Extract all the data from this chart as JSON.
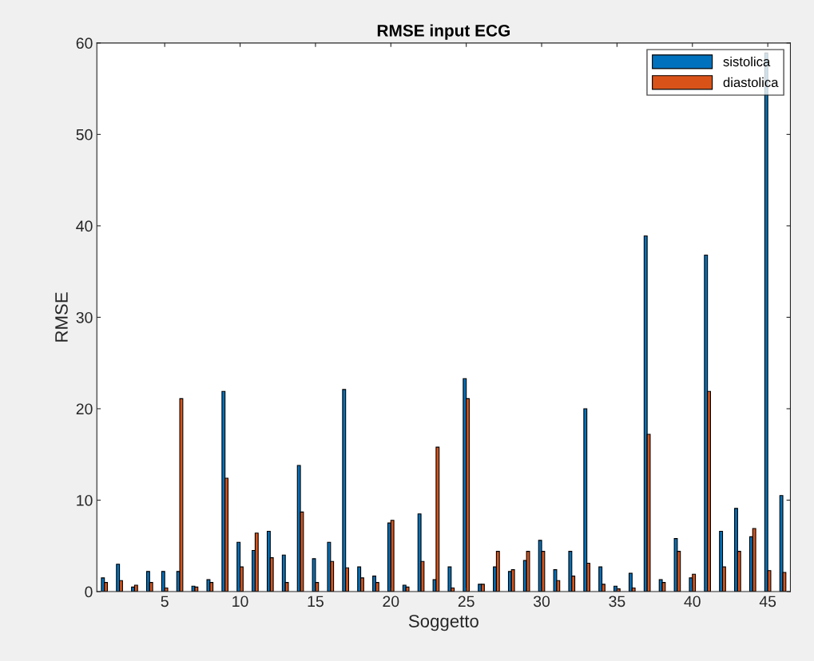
{
  "chart_data": {
    "type": "bar",
    "title": "RMSE input ECG",
    "xlabel": "Soggetto",
    "ylabel": "RMSE",
    "x": [
      1,
      2,
      3,
      4,
      5,
      6,
      7,
      8,
      9,
      10,
      11,
      12,
      13,
      14,
      15,
      16,
      17,
      18,
      19,
      20,
      21,
      22,
      23,
      24,
      25,
      26,
      27,
      28,
      29,
      30,
      31,
      32,
      33,
      34,
      35,
      36,
      37,
      38,
      39,
      40,
      41,
      42,
      43,
      44,
      45,
      46
    ],
    "series": [
      {
        "name": "sistolica",
        "color": "#0072bd",
        "values": [
          1.5,
          3.0,
          0.5,
          2.2,
          2.2,
          2.2,
          0.6,
          1.3,
          21.9,
          5.4,
          4.5,
          6.6,
          4.0,
          13.8,
          3.6,
          5.4,
          22.1,
          2.7,
          1.7,
          7.5,
          0.7,
          8.5,
          1.3,
          2.7,
          23.3,
          0.8,
          2.7,
          2.2,
          3.4,
          5.6,
          2.4,
          4.4,
          20.0,
          2.7,
          0.6,
          2.0,
          38.9,
          1.3,
          5.8,
          1.5,
          36.8,
          6.6,
          9.1,
          6.0,
          58.9,
          10.5
        ]
      },
      {
        "name": "diastolica",
        "color": "#d95319",
        "values": [
          1.0,
          1.2,
          0.7,
          1.0,
          0.4,
          21.1,
          0.5,
          1.0,
          12.4,
          2.7,
          6.4,
          3.7,
          1.0,
          8.7,
          1.0,
          3.3,
          2.6,
          1.5,
          1.0,
          7.8,
          0.5,
          3.3,
          15.8,
          0.4,
          21.1,
          0.8,
          4.4,
          2.4,
          4.4,
          4.4,
          1.2,
          1.7,
          3.1,
          0.8,
          0.3,
          0.4,
          17.2,
          1.0,
          4.4,
          1.9,
          21.9,
          2.7,
          4.4,
          6.9,
          2.3,
          2.1
        ]
      }
    ],
    "xlim": [
      0.5,
      46.5
    ],
    "xticks": [
      5,
      10,
      15,
      20,
      25,
      30,
      35,
      40,
      45
    ],
    "ylim": [
      0,
      60
    ],
    "yticks": [
      0,
      10,
      20,
      30,
      40,
      50,
      60
    ],
    "grid": false,
    "legend": "top right"
  }
}
